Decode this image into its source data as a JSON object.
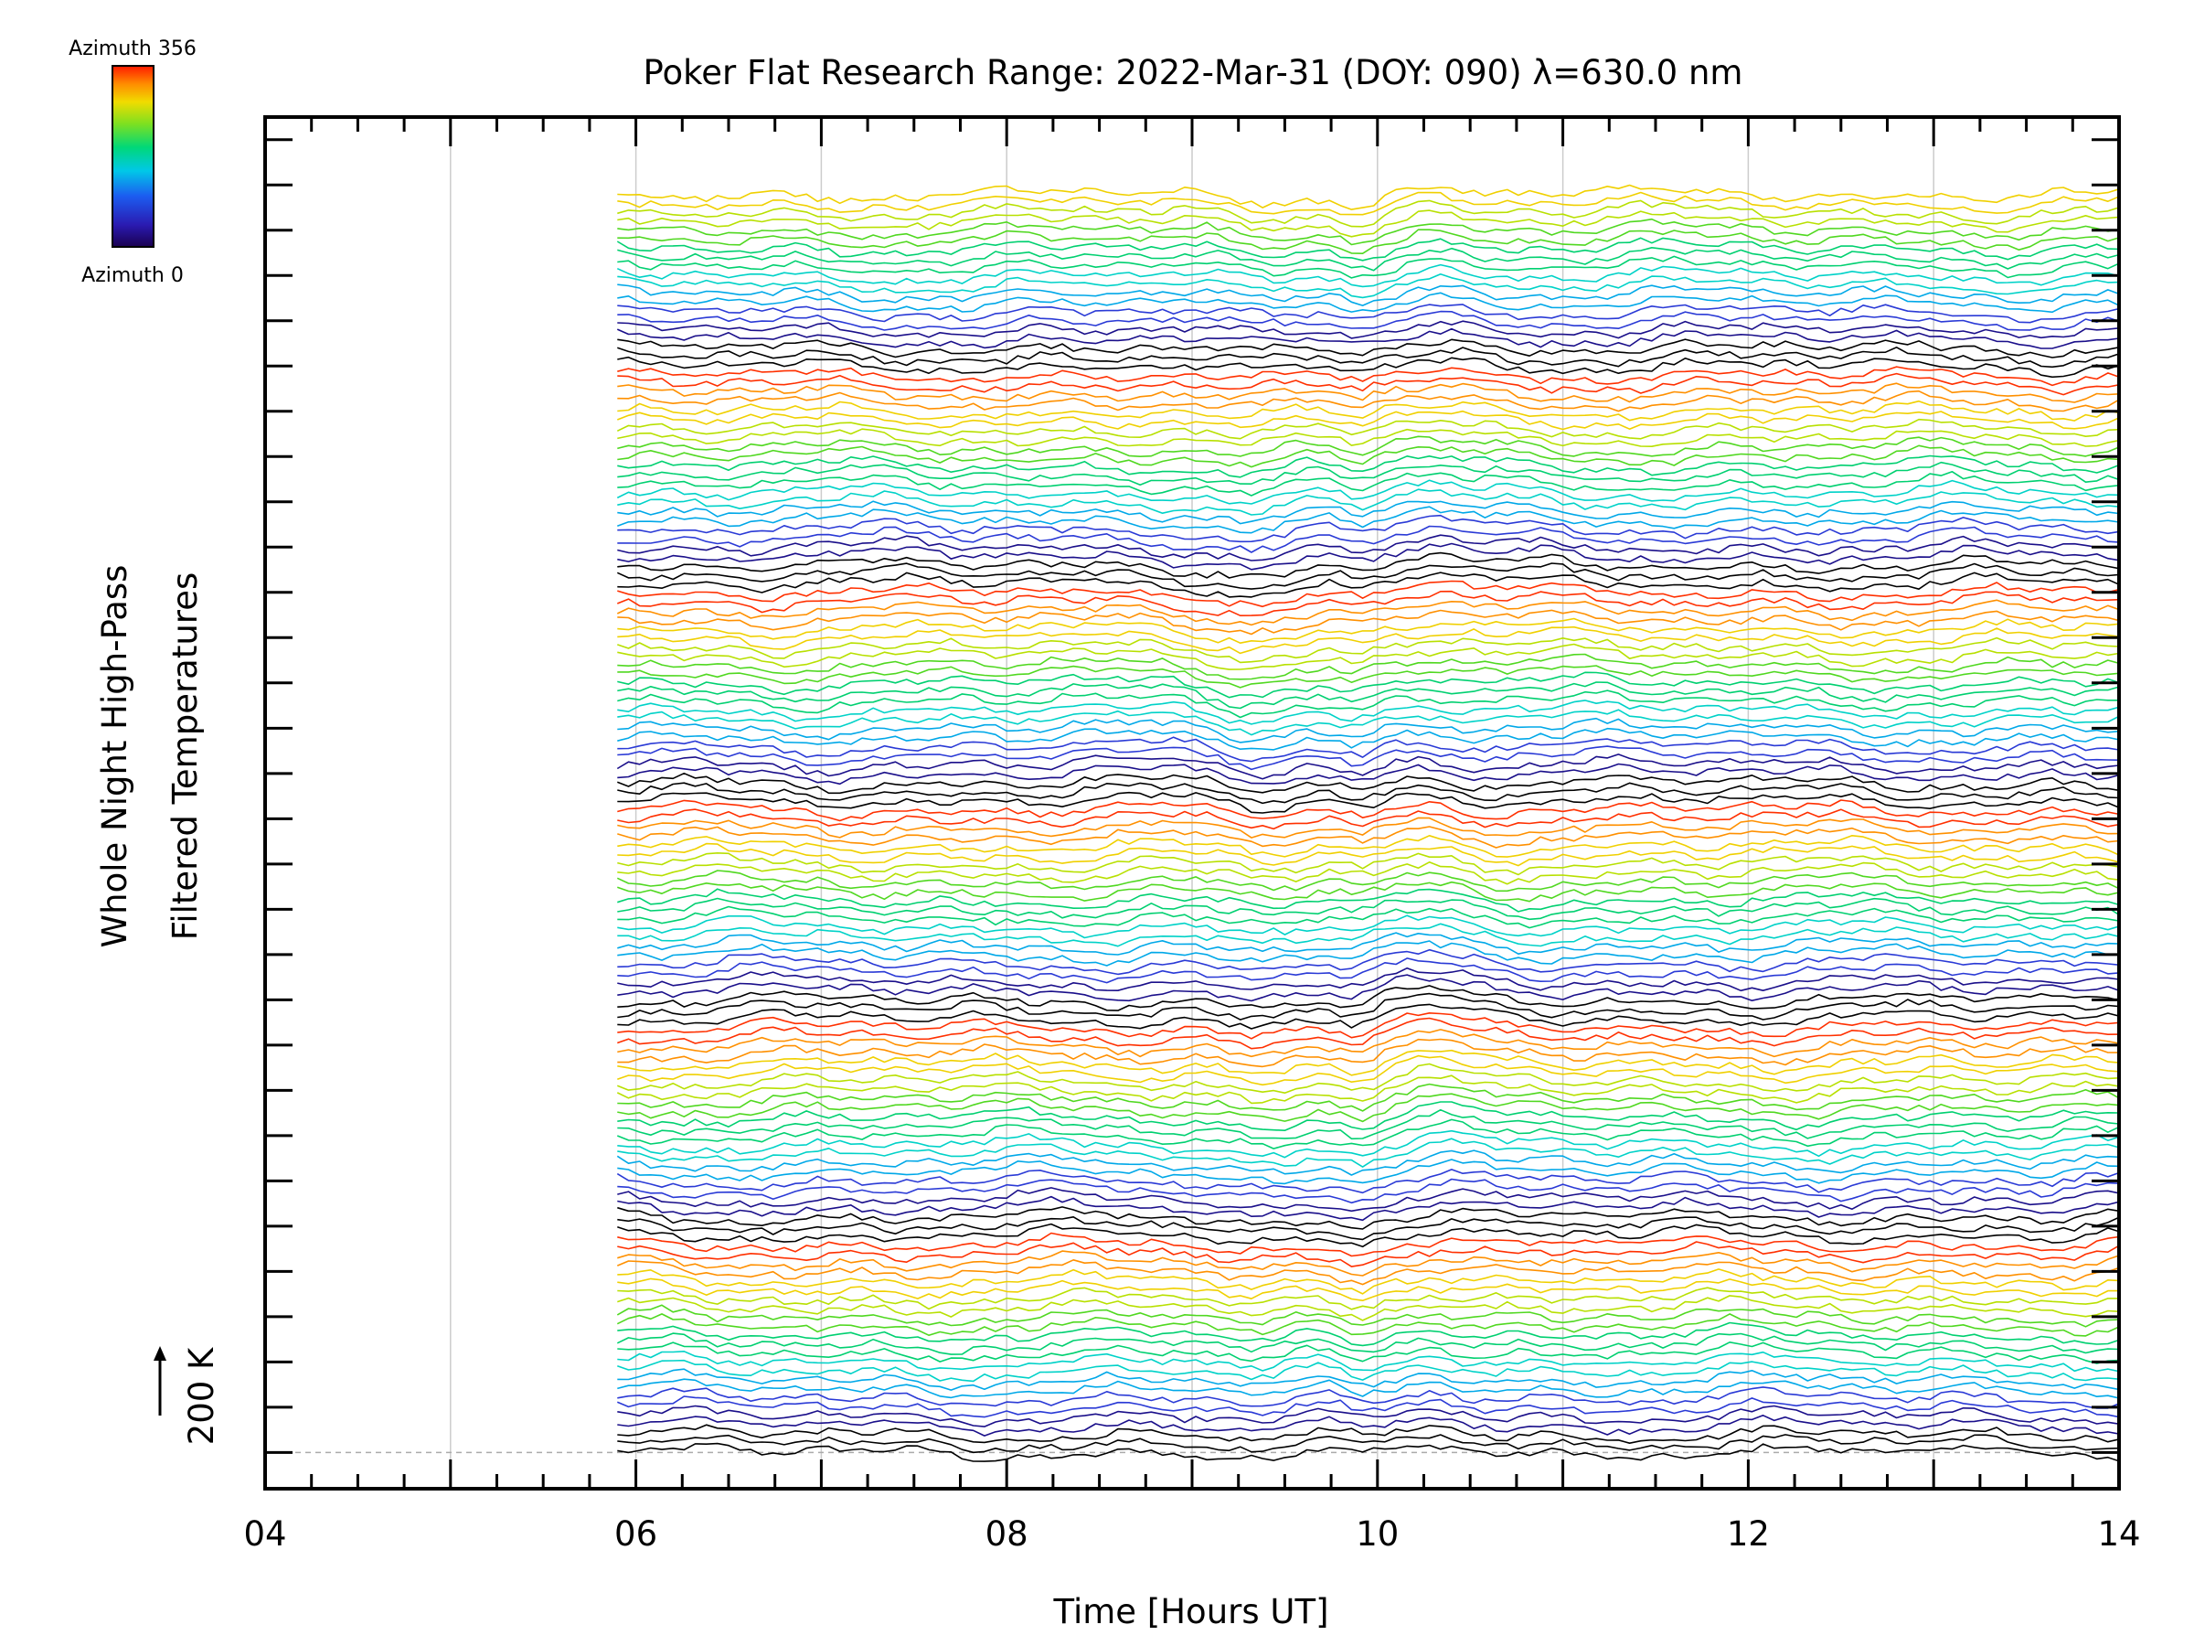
{
  "chart_data": {
    "type": "line",
    "title": "Poker Flat Research Range: 2022-Mar-31 (DOY: 090) λ=630.0 nm",
    "xlabel": "Time [Hours UT]",
    "ylabel_line1": "Whole Night High-Pass",
    "ylabel_line2": "Filtered Temperatures",
    "xlim": [
      4,
      14
    ],
    "x_major_ticks": [
      4,
      6,
      8,
      10,
      12,
      14
    ],
    "x_tick_labels": [
      "04",
      "06",
      "08",
      "10",
      "12",
      "14"
    ],
    "x_minor_step_hours": 0.25,
    "x_gridlines": [
      5,
      6,
      7,
      8,
      9,
      10,
      11,
      12,
      13
    ],
    "data_start_hour": 5.9,
    "data_end_hour": 14.0,
    "sample_step_hours": 0.06,
    "trace_count": 140,
    "traces_per_scan": 24,
    "trace_spacing_K": 20,
    "ylim_K": [
      -80,
      2950
    ],
    "y_tick_step_K": 200,
    "scale_bar_label": "200 K",
    "scale_bar_value_K": 200,
    "baseline_K": 0,
    "colorbar": {
      "top_label": "Azimuth  356",
      "bottom_label": "Azimuth  0",
      "azimuth_min": 0,
      "azimuth_max": 356,
      "colormap": "rainbow"
    },
    "line_colors": [
      "#000000",
      "#1a0f8a",
      "#2a3ad6",
      "#00a8e8",
      "#00d2c8",
      "#00d070",
      "#50d820",
      "#b8e000",
      "#f0d000",
      "#ff9000",
      "#ff3000"
    ],
    "gridline_color": "#cccccc",
    "baseline_color": "#aaaaaa"
  }
}
